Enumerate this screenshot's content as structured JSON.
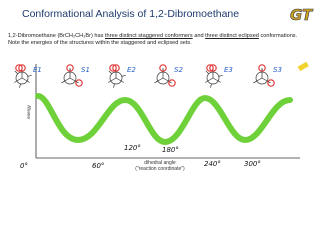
{
  "header": {
    "title": "Conformational Analysis of 1,2-Dibromoethane",
    "logo": "GT"
  },
  "body": {
    "parts": [
      "1,2-Dibromoethane (BrCH₂CH₂Br) has ",
      "three distinct staggered conformers",
      " and ",
      "three distinct eclipsed",
      " conformations. Note the energies of the structures within the staggered and eclipsed sets."
    ]
  },
  "conformers": [
    "E1",
    "S1",
    "E2",
    "S2",
    "E3",
    "S3"
  ],
  "axis": {
    "y_label": "energy",
    "x_label": "dihedral angle",
    "x_sublabel": "(\"reaction coordinate\")",
    "ticks": [
      "0°",
      "60°",
      "120°",
      "180°",
      "240°",
      "300°"
    ]
  }
}
